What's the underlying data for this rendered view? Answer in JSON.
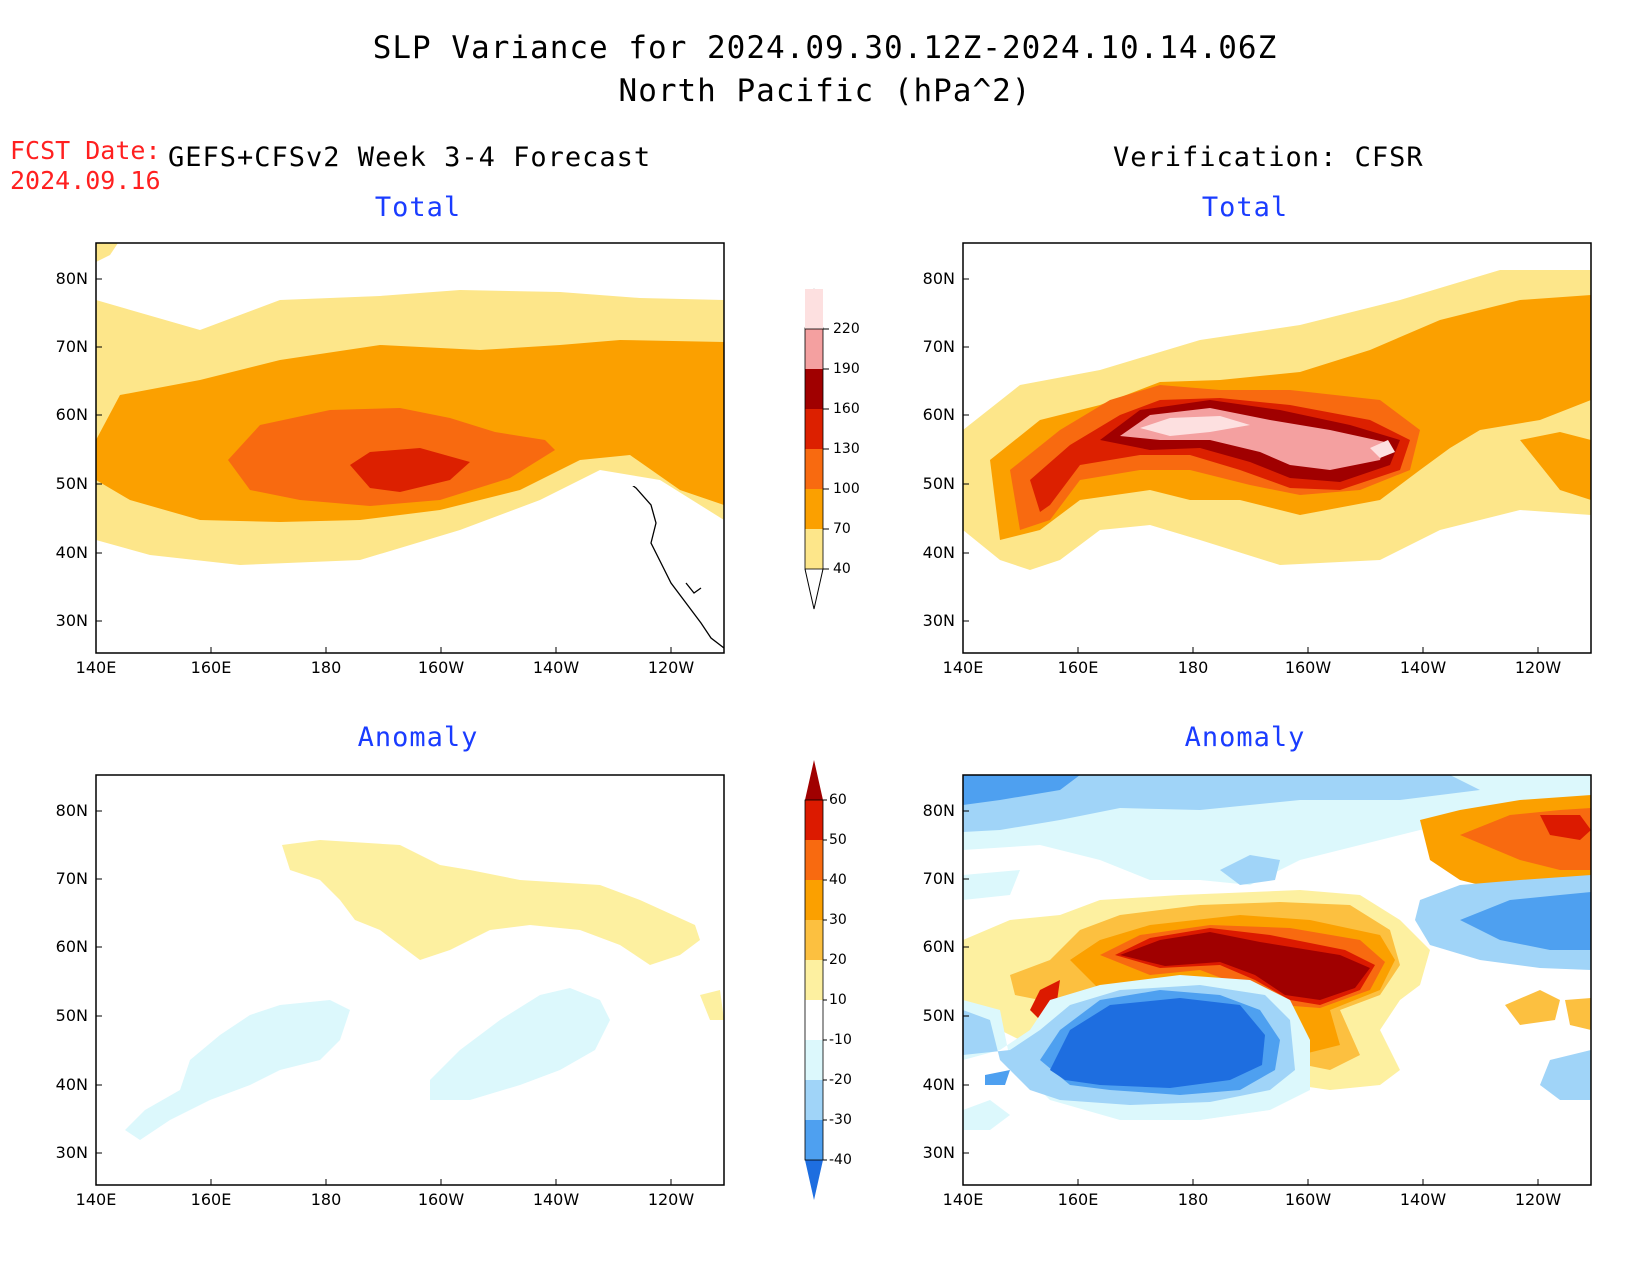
{
  "title": {
    "line1": "SLP Variance for 2024.09.30.12Z-2024.10.14.06Z",
    "line2": "North Pacific (hPa^2)"
  },
  "fcst": {
    "label": "FCST Date:",
    "date": "2024.09.16"
  },
  "headers": {
    "left": "GEFS+CFSv2 Week 3-4 Forecast",
    "right": "Verification: CFSR"
  },
  "panels": {
    "forecast_total": {
      "subtitle": "Total"
    },
    "verification_total": {
      "subtitle": "Total"
    },
    "forecast_anomaly": {
      "subtitle": "Anomaly"
    },
    "verification_anomaly": {
      "subtitle": "Anomaly"
    }
  },
  "axes": {
    "lat_labels": [
      "80N",
      "70N",
      "60N",
      "50N",
      "40N",
      "30N"
    ],
    "lon_labels": [
      "140E",
      "160E",
      "180",
      "160W",
      "140W",
      "120W"
    ]
  },
  "colorbar_total": {
    "levels": [
      "220",
      "190",
      "160",
      "130",
      "100",
      "70",
      "40"
    ],
    "colors": [
      "#fde0e0",
      "#f4a0a0",
      "#a00000",
      "#dc2000",
      "#f86a10",
      "#fba000",
      "#fde68a"
    ]
  },
  "colorbar_anomaly": {
    "levels": [
      "60",
      "50",
      "40",
      "30",
      "20",
      "10",
      "-10",
      "-20",
      "-30",
      "-40"
    ],
    "colors": [
      "#a00000",
      "#dc1a00",
      "#f86a10",
      "#fba000",
      "#fcc040",
      "#fdf0a0",
      "#ffffff",
      "#dcf8fc",
      "#a0d4f8",
      "#4ea0f0",
      "#1e6ee0"
    ]
  }
}
